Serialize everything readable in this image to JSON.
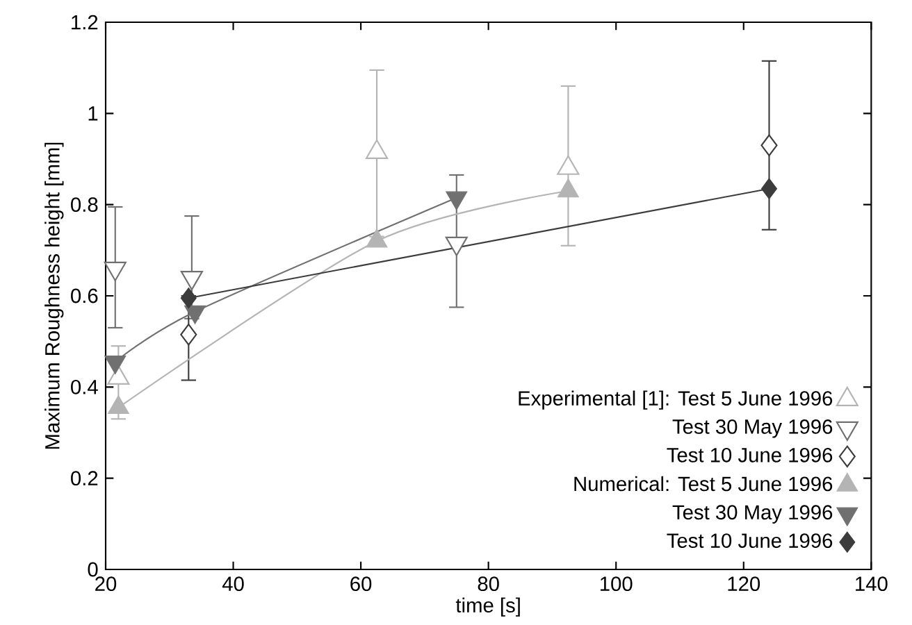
{
  "chart_data": {
    "type": "scatter",
    "xlabel": "time [s]",
    "ylabel": "Maximum Roughness height [mm]",
    "xlim": [
      20,
      140
    ],
    "xticks": [
      20,
      40,
      60,
      80,
      100,
      120,
      140
    ],
    "ylim": [
      0,
      1.2
    ],
    "yticks": [
      0,
      0.2,
      0.4,
      0.6,
      0.8,
      1,
      1.2
    ],
    "legend": "bottom right",
    "grid": false,
    "series": [
      {
        "name": "Experimental [1]: Test 5 June 1996",
        "type": "scatter",
        "marker": "triangle",
        "color": "#b4b4b4",
        "x": [
          22,
          62.5,
          92.5
        ],
        "values": [
          0.42,
          0.915,
          0.88
        ],
        "errors": [
          [
            0.33,
            0.49
          ],
          [
            0.73,
            1.095
          ],
          [
            0.71,
            1.06
          ]
        ]
      },
      {
        "name": "Test 30 May 1996",
        "type": "scatter",
        "marker": "triangle-down",
        "color": "#707070",
        "x": [
          21.5,
          33.5,
          75
        ],
        "values": [
          0.66,
          0.64,
          0.715
        ],
        "errors": [
          [
            0.53,
            0.795
          ],
          [
            0.55,
            0.775
          ],
          [
            0.575,
            0.865
          ]
        ]
      },
      {
        "name": "Test 10 June 1996",
        "type": "scatter",
        "marker": "diamond",
        "color": "#3c3c3c",
        "x": [
          33,
          124
        ],
        "values": [
          0.515,
          0.93
        ],
        "errors": [
          [
            0.415,
            0.6
          ],
          [
            0.745,
            1.115
          ]
        ]
      },
      {
        "name": "Numerical: Test 5 June 1996",
        "type": "line",
        "marker": "triangle",
        "color": "#b4b4b4",
        "x": [
          22,
          62.5,
          92.5
        ],
        "values": [
          0.355,
          0.72,
          0.83
        ]
      },
      {
        "name": "Test 30 May 1996",
        "type": "line",
        "marker": "triangle-down",
        "color": "#707070",
        "x": [
          21.5,
          34,
          75
        ],
        "values": [
          0.455,
          0.565,
          0.815
        ]
      },
      {
        "name": "Test 10 June 1996",
        "type": "line",
        "marker": "diamond",
        "color": "#3c3c3c",
        "x": [
          33,
          124
        ],
        "values": [
          0.595,
          0.835
        ]
      }
    ]
  }
}
